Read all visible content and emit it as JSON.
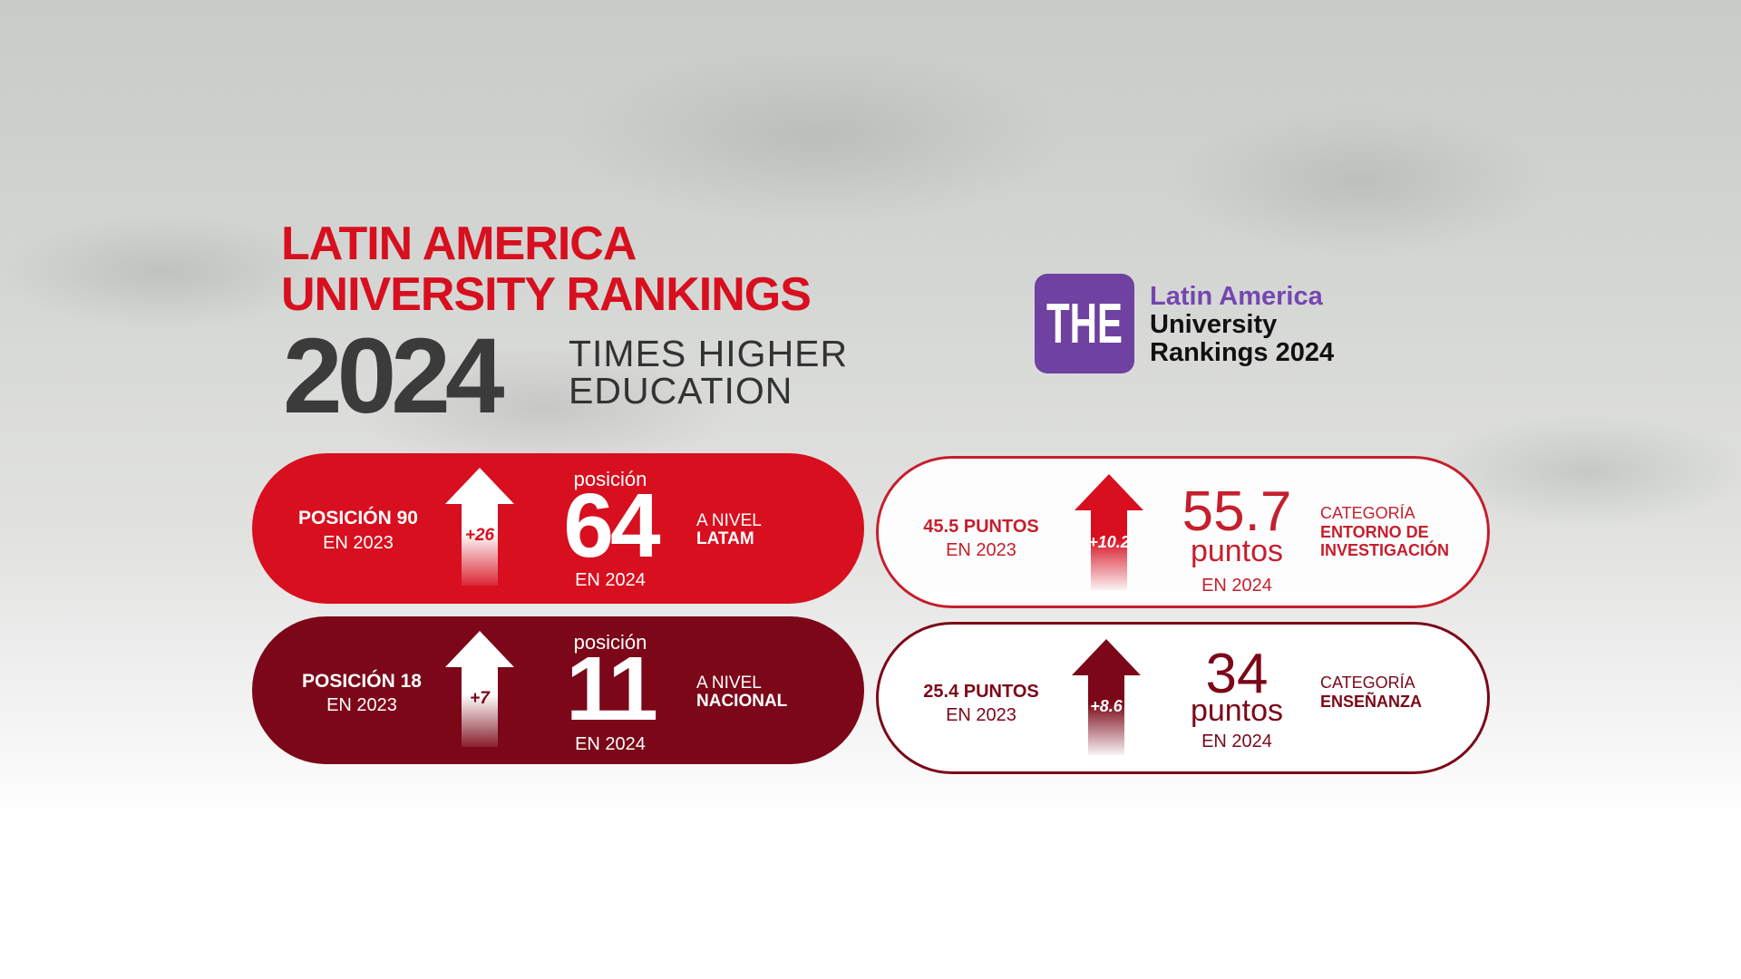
{
  "header": {
    "title_line1": "LATIN AMERICA",
    "title_line2": "UNIVERSITY RANKINGS",
    "year": "2024",
    "subtitle_line1": "TIMES HIGHER",
    "subtitle_line2": "EDUCATION"
  },
  "logo": {
    "mark": "THE",
    "line1": "Latin America",
    "line2": "University",
    "line3": "Rankings 2024"
  },
  "cards": [
    {
      "prev_label": "POSICIÓN 90",
      "prev_year": "EN 2023",
      "delta": "+26",
      "value_caption": "posición",
      "value": "64",
      "value_year": "EN 2024",
      "scope_line1": "A NIVEL",
      "scope_line2": "LATAM"
    },
    {
      "prev_label": "POSICIÓN 18",
      "prev_year": "EN 2023",
      "delta": "+7",
      "value_caption": "posición",
      "value": "11",
      "value_year": "EN 2024",
      "scope_line1": "A NIVEL",
      "scope_line2": "NACIONAL"
    },
    {
      "prev_label": "45.5 PUNTOS",
      "prev_year": "EN 2023",
      "delta": "+10.2",
      "value": "55.7",
      "value_unit": "puntos",
      "value_year": "EN 2024",
      "category_label": "CATEGORÍA",
      "category_line1": "ENTORNO DE",
      "category_line2": "INVESTIGACIÓN"
    },
    {
      "prev_label": "25.4 PUNTOS",
      "prev_year": "EN 2023",
      "delta": "+8.6",
      "value": "34",
      "value_unit": "puntos",
      "value_year": "EN 2024",
      "category_label": "CATEGORÍA",
      "category_line1": "ENSEÑANZA"
    }
  ],
  "colors": {
    "red": "#d70f1f",
    "dark_red": "#7b0718",
    "purple": "#6f41a0",
    "gray_text": "#3b3b3b"
  },
  "icons": [
    "up-arrow-icon"
  ]
}
